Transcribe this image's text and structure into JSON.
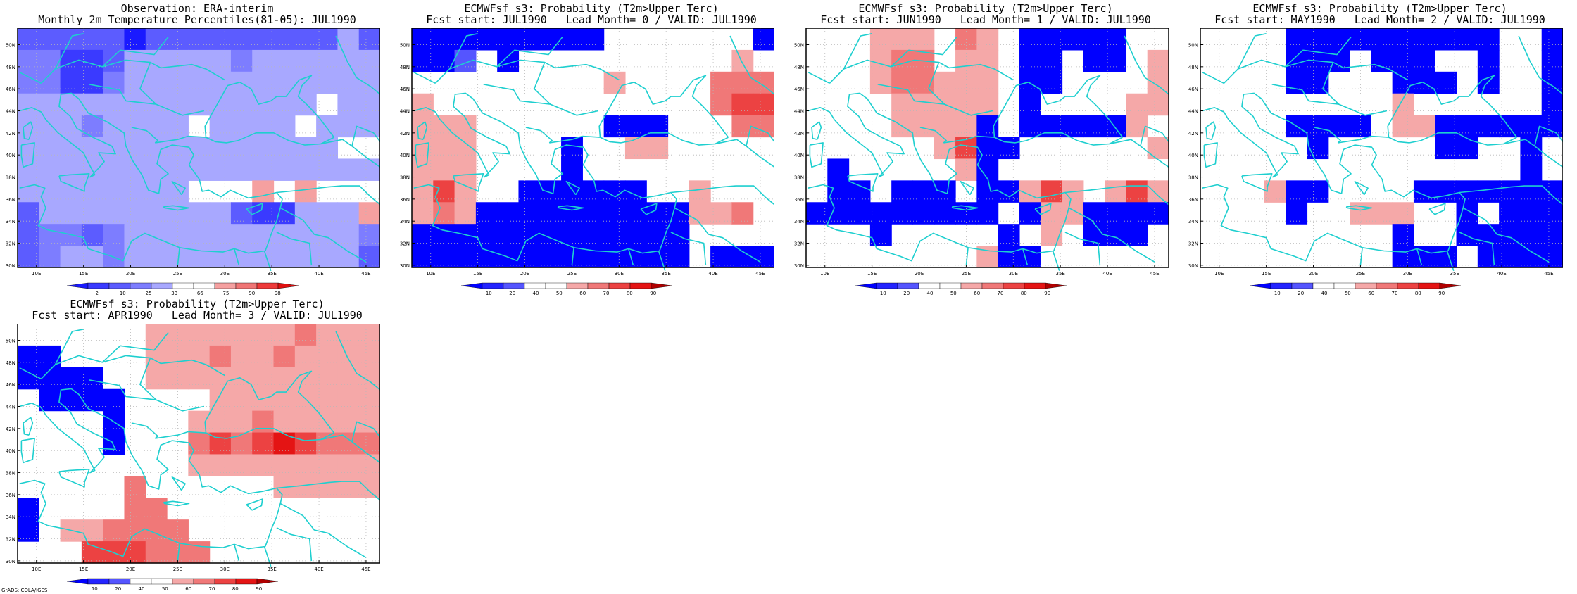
{
  "colors": {
    "coast": "#1ecfcf",
    "grid": "#b8b8b8",
    "obs_levels": [
      "#1a1aff",
      "#3a3aff",
      "#5c5cff",
      "#7d7dff",
      "#a8a8ff",
      "#ffffff",
      "#ffffff",
      "#f5a0a0",
      "#f07575",
      "#ee3a3a",
      "#e01010"
    ],
    "prob_levels": [
      "#0000ff",
      "#2424ff",
      "#5555ff",
      "#ffffff",
      "#ffffff",
      "#f5a8a8",
      "#f07878",
      "#ec4242",
      "#e41414",
      "#b00000"
    ]
  },
  "panels": [
    {
      "id": "obs",
      "title1": "Observation: ERA-interim",
      "title2": "Monthly 2m Temperature Percentiles(81-05): JUL1990",
      "credit": "",
      "colorbar": {
        "labels": [
          "2",
          "10",
          "25",
          "33",
          "66",
          "75",
          "90",
          "98"
        ],
        "palette": "obs_levels"
      },
      "grid": [
        "3 3 3 3 3 1 3 3 3 3 3 3 3 3 3 5 3",
        "4 4 2 2 3 5 5 5 5 5 4 5 5 5 5 5 5",
        "4 4 2 2 4 5 5 5 5 5 5 5 5 5 5 5 5",
        "5 5 5 5 5 5 5 5 5 5 5 5 5 5 7 5 5",
        "5 5 5 4 5 5 5 5 7 5 5 5 5 7 5 5 5",
        "5 5 5 5 5 5 5 5 5 5 5 5 5 5 5 7 7",
        "5 5 5 5 5 5 5 5 5 5 5 5 5 5 5 5 5",
        "5 5 5 5 5 5 5 5 7 7 7 8 7 8 7 7 7",
        "3 5 5 5 5 5 5 5 5 5 3 2 2 5 5 5 8",
        "3 4 4 3 4 5 5 5 5 5 5 5 5 5 5 5 4",
        "3 4 5 5 4 5 5 5 5 5 5 5 5 5 5 5 3"
      ]
    },
    {
      "id": "lead0",
      "title1": "ECMWFsf s3: Probability (T2m>Upper Terc)",
      "title2": "Fcst start: JUL1990   Lead Month= 0 / VALID: JUL1990",
      "credit": "",
      "colorbar": {
        "labels": [
          "10",
          "20",
          "40",
          "50",
          "60",
          "70",
          "80",
          "90"
        ],
        "palette": "prob_levels"
      },
      "grid": [
        "1 1 1 1 1 1 1 1 1 4 4 4 4 4 4 4 1",
        "1 1 3 4 1 4 4 4 4 4 4 4 4 4 4 6 4",
        "4 4 4 4 4 4 4 4 4 6 4 4 4 4 7 7 7",
        "6 4 4 4 4 4 4 4 4 4 4 4 4 4 7 8 8",
        "6 6 6 4 4 4 4 4 4 1 1 1 4 4 4 7 7",
        "6 6 6 4 4 4 4 1 4 4 6 6 4 4 4 4 4",
        "6 6 6 4 4 4 4 1 4 4 4 4 4 4 4 4 4",
        "6 8 6 4 4 1 1 1 1 1 1 4 4 6 4 4 4",
        "6 7 6 1 1 1 1 1 1 1 1 1 1 6 6 7 4",
        "1 1 1 1 1 1 1 1 1 1 1 1 1 4 4 4 4",
        "1 1 1 1 1 1 1 1 1 1 1 1 1 4 1 1 1"
      ]
    },
    {
      "id": "lead1",
      "title1": "ECMWFsf s3: Probability (T2m>Upper Terc)",
      "title2": "Fcst start: JUN1990   Lead Month= 1 / VALID: JUL1990",
      "credit": "",
      "colorbar": {
        "labels": [
          "10",
          "20",
          "40",
          "50",
          "60",
          "70",
          "80",
          "90"
        ],
        "palette": "prob_levels"
      },
      "grid": [
        "4 4 4 6 6 6 4 7 6 4 1 1 1 1 1 4 4",
        "4 4 4 6 7 7 4 6 6 4 1 1 4 1 1 4 6",
        "4 4 4 6 7 7 6 6 6 4 1 1 4 4 4 4 6",
        "4 4 4 4 6 6 6 6 6 4 1 4 4 4 4 6 6",
        "4 4 4 4 6 6 6 6 1 4 1 1 1 1 1 6 4",
        "4 4 4 4 4 4 6 8 1 1 4 4 4 4 4 4 6",
        "4 1 4 4 4 4 4 6 1 4 4 4 4 4 4 4 4",
        "4 1 1 4 1 1 1 4 1 1 6 8 6 4 6 8 6",
        "1 1 1 1 1 1 1 1 1 4 1 6 6 1 1 1 1",
        "4 4 4 1 4 4 4 4 4 1 4 6 4 1 1 1 4",
        "4 4 4 4 4 4 4 4 6 1 1 4 4 4 4 4 4"
      ]
    },
    {
      "id": "lead2",
      "title1": "ECMWFsf s3: Probability (T2m>Upper Terc)",
      "title2": "Fcst start: MAY1990   Lead Month= 2 / VALID: JUL1990",
      "credit": "",
      "colorbar": {
        "labels": [
          "10",
          "20",
          "40",
          "50",
          "60",
          "70",
          "80",
          "90"
        ],
        "palette": "prob_levels"
      },
      "grid": [
        "4 4 4 4 1 1 1 1 1 1 1 1 1 1 4 4 1",
        "4 4 4 4 1 1 1 4 1 1 1 4 4 1 4 4 1",
        "4 4 4 4 1 1 4 4 4 1 1 1 4 1 4 4 1",
        "4 4 4 4 4 4 4 4 4 6 4 4 4 4 4 4 1",
        "4 4 4 4 1 1 1 1 4 6 6 1 1 1 1 1 1",
        "4 4 4 4 4 1 4 4 4 4 4 1 1 4 4 1 4",
        "4 4 4 4 4 4 4 4 4 4 4 4 4 4 4 1 4",
        "4 4 4 6 1 1 4 4 4 4 1 1 1 1 1 1 1",
        "4 4 4 4 1 4 4 6 6 6 4 4 1 4 1 1 1",
        "4 4 4 4 4 4 4 4 4 1 4 4 1 1 1 1 1",
        "4 4 4 4 4 4 4 4 4 1 1 1 4 1 1 1 1"
      ]
    },
    {
      "id": "lead3",
      "title1": "ECMWFsf s3: Probability (T2m>Upper Terc)",
      "title2": "Fcst start: APR1990   Lead Month= 3 / VALID: JUL1990",
      "credit": "GrADS: COLA/IGES",
      "colorbar": {
        "labels": [
          "10",
          "20",
          "40",
          "50",
          "60",
          "70",
          "80",
          "90"
        ],
        "palette": "prob_levels"
      },
      "grid": [
        "4 4 4 4 4 4 6 6 6 6 6 6 6 7 6 6 6",
        "1 1 4 4 4 4 6 6 6 7 6 6 7 6 6 6 6",
        "1 1 1 1 4 4 6 6 6 6 6 6 6 6 6 6 6",
        "4 1 1 1 1 4 4 4 4 6 6 6 6 6 6 6 6",
        "4 4 4 4 1 4 4 4 6 6 6 7 6 6 6 6 6",
        "4 4 4 4 1 4 4 4 7 8 7 8 9 8 7 7 7",
        "4 4 4 4 4 4 4 4 6 6 6 6 6 6 6 6 6",
        "4 4 4 4 4 7 4 4 4 4 4 4 6 6 6 6 6",
        "1 4 4 4 4 7 7 4 4 4 4 4 4 4 4 4 4",
        "1 4 6 6 7 7 7 7 4 4 4 4 4 4 4 4 4",
        "4 4 4 8 8 8 7 7 7 4 4 4 4 4 4 4 4"
      ]
    }
  ],
  "axes": {
    "lat_labels": [
      "50N",
      "48N",
      "46N",
      "44N",
      "42N",
      "40N",
      "38N",
      "36N",
      "34N",
      "32N",
      "30N"
    ],
    "lon_labels": [
      "10E",
      "15E",
      "20E",
      "25E",
      "30E",
      "35E",
      "40E",
      "45E"
    ]
  }
}
